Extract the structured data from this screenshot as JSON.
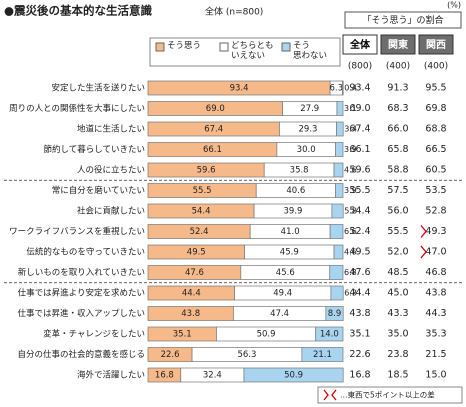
{
  "chart_data": {
    "type": "stacked-bar",
    "title": "●震災後の基本的な生活意識",
    "subtitle": "全体 (n=800)",
    "categories": [
      "安定した生活を送りたい",
      "周りの人との関係性を大事にしたい",
      "地道に生活したい",
      "節約して暮らしていきたい",
      "人の役に立ちたい",
      "常に自分を磨いていたい",
      "社会に貢献したい",
      "ワークライフバランスを重視したい",
      "伝統的なものを守っていきたい",
      "新しいものを取り入れていきたい",
      "仕事では昇進より安定を求めたい",
      "仕事では昇進・収入アップしたい",
      "変革・チャレンジをしたい",
      "自分の仕事の社会的意義を感じる",
      "海外で活躍したい"
    ],
    "series": [
      {
        "name": "そう思う",
        "color": "#f6b98a",
        "values": [
          93.4,
          69.0,
          67.4,
          66.1,
          59.6,
          55.5,
          54.4,
          52.4,
          49.5,
          47.6,
          44.4,
          43.8,
          35.1,
          22.6,
          16.8
        ],
        "value_labels": [
          "93.4",
          "69.0",
          "67.4",
          "66.1",
          "59.6",
          "55.5",
          "54.4",
          "52.4",
          "49.5",
          "47.6",
          "44.4",
          "43.8",
          "35.1",
          "22.6",
          "16.8"
        ]
      },
      {
        "name": "どちらとも\nいえない",
        "color": "#ffffff",
        "values": [
          6.3,
          27.9,
          29.3,
          30.0,
          35.8,
          40.6,
          39.9,
          41.0,
          45.9,
          45.6,
          49.4,
          47.4,
          50.9,
          56.3,
          32.4
        ],
        "value_labels": [
          "6.3",
          "27.9",
          "29.3",
          "30.0",
          "35.8",
          "40.6",
          "39.9",
          "41.0",
          "45.9",
          "45.6",
          "49.4",
          "47.4",
          "50.9",
          "56.3",
          "32.4"
        ]
      },
      {
        "name": "そう\n思わない",
        "color": "#a8d4f0",
        "values": [
          0.4,
          3.1,
          3.4,
          3.9,
          4.6,
          3.9,
          5.8,
          6.6,
          4.6,
          6.8,
          6.3,
          8.9,
          14.0,
          21.1,
          50.9
        ],
        "value_labels": [
          "0.4",
          "3.1",
          "3.4",
          "3.9",
          "4.6",
          "3.9",
          "5.8",
          "6.6",
          "4.6",
          "6.8",
          "6.3",
          "8.9",
          "14.0",
          "21.1",
          "50.9"
        ]
      }
    ],
    "xlim": [
      0,
      100
    ],
    "group_breaks": [
      5,
      10
    ],
    "table": {
      "title": "「そう思う」の割合",
      "unit": "(%)",
      "columns": [
        "全体",
        "関東",
        "関西"
      ],
      "n": [
        "(800)",
        "(400)",
        "(400)"
      ],
      "rows": [
        [
          "93.4",
          "91.3",
          "95.5"
        ],
        [
          "69.0",
          "68.3",
          "69.8"
        ],
        [
          "67.4",
          "66.0",
          "68.8"
        ],
        [
          "66.1",
          "65.8",
          "66.5"
        ],
        [
          "59.6",
          "58.8",
          "60.5"
        ],
        [
          "55.5",
          "57.5",
          "53.5"
        ],
        [
          "54.4",
          "56.0",
          "52.8"
        ],
        [
          "52.4",
          "55.5",
          "49.3"
        ],
        [
          "49.5",
          "52.0",
          "47.0"
        ],
        [
          "47.6",
          "48.5",
          "46.8"
        ],
        [
          "44.4",
          "45.0",
          "43.8"
        ],
        [
          "43.8",
          "43.3",
          "44.3"
        ],
        [
          "35.1",
          "35.0",
          "35.3"
        ],
        [
          "22.6",
          "23.8",
          "21.5"
        ],
        [
          "16.8",
          "18.5",
          "15.0"
        ]
      ],
      "highlight_rows": [
        7,
        8
      ],
      "note": "…東西で5ポイント以上の差"
    }
  }
}
